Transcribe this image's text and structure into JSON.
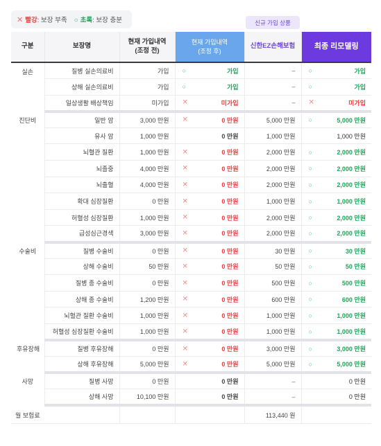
{
  "legend": {
    "red_label": "빨강",
    "red_text": ": 보장 부족",
    "green_label": "초록",
    "green_text": ": 보장 충분",
    "x_mark": "✕",
    "o_mark": "○"
  },
  "badge": "신규 가입 상품",
  "headers": {
    "category": "구분",
    "coverage": "보장명",
    "current_l1": "현재 가입내역",
    "current_l2": "(조정 전)",
    "adjusted_l1": "현재 가입내역",
    "adjusted_l2": "(조정 후)",
    "shinhan": "신한EZ손해보험",
    "remodel": "최종 리모델링"
  },
  "rows": [
    {
      "cat": "실손",
      "name": "질병 실손의료비",
      "cur": "가입",
      "mk": "o",
      "adj": "가입",
      "adj_c": "g",
      "sh": "–",
      "rmk": "o",
      "rem": "가입",
      "rem_c": "g"
    },
    {
      "cat": "",
      "name": "상해 실손의료비",
      "cur": "가입",
      "mk": "o",
      "adj": "가입",
      "adj_c": "g",
      "sh": "–",
      "rmk": "o",
      "rem": "가입",
      "rem_c": "g"
    },
    {
      "cat": "",
      "name": "일상생활 배상책임",
      "cur": "미가입",
      "mk": "x",
      "adj": "미가입",
      "adj_c": "r",
      "sh": "–",
      "rmk": "x",
      "rem": "미가입",
      "rem_c": "r",
      "end": true
    },
    {
      "cat": "진단비",
      "name": "일반 암",
      "cur": "3,000 만원",
      "mk": "x",
      "adj": "0 만원",
      "adj_c": "r",
      "sh": "5,000 만원",
      "rmk": "o",
      "rem": "5,000 만원",
      "rem_c": "g"
    },
    {
      "cat": "",
      "name": "유사 암",
      "cur": "1,000 만원",
      "mk": "",
      "adj": "0 만원",
      "adj_c": "",
      "sh": "1,000 만원",
      "rmk": "",
      "rem": "1,000 만원",
      "rem_c": ""
    },
    {
      "cat": "",
      "name": "뇌혈관 질환",
      "cur": "1,000 만원",
      "mk": "x",
      "adj": "0 만원",
      "adj_c": "r",
      "sh": "2,000 만원",
      "rmk": "o",
      "rem": "2,000 만원",
      "rem_c": "g"
    },
    {
      "cat": "",
      "name": "뇌졸중",
      "cur": "4,000 만원",
      "mk": "x",
      "adj": "0 만원",
      "adj_c": "r",
      "sh": "2,000 만원",
      "rmk": "o",
      "rem": "2,000 만원",
      "rem_c": "g"
    },
    {
      "cat": "",
      "name": "뇌출혈",
      "cur": "4,000 만원",
      "mk": "x",
      "adj": "0 만원",
      "adj_c": "r",
      "sh": "2,000 만원",
      "rmk": "o",
      "rem": "2,000 만원",
      "rem_c": "g"
    },
    {
      "cat": "",
      "name": "확대 심장질환",
      "cur": "0 만원",
      "mk": "x",
      "adj": "0 만원",
      "adj_c": "r",
      "sh": "1,000 만원",
      "rmk": "o",
      "rem": "1,000 만원",
      "rem_c": "g"
    },
    {
      "cat": "",
      "name": "허혈성 심장질환",
      "cur": "1,000 만원",
      "mk": "x",
      "adj": "0 만원",
      "adj_c": "r",
      "sh": "2,000 만원",
      "rmk": "o",
      "rem": "2,000 만원",
      "rem_c": "g"
    },
    {
      "cat": "",
      "name": "급성심근경색",
      "cur": "3,000 만원",
      "mk": "x",
      "adj": "0 만원",
      "adj_c": "r",
      "sh": "2,000 만원",
      "rmk": "o",
      "rem": "2,000 만원",
      "rem_c": "g",
      "end": true
    },
    {
      "cat": "수술비",
      "name": "질병 수술비",
      "cur": "0 만원",
      "mk": "x",
      "adj": "0 만원",
      "adj_c": "r",
      "sh": "30 만원",
      "rmk": "o",
      "rem": "30 만원",
      "rem_c": "g"
    },
    {
      "cat": "",
      "name": "상해 수술비",
      "cur": "50 만원",
      "mk": "x",
      "adj": "0 만원",
      "adj_c": "r",
      "sh": "50 만원",
      "rmk": "o",
      "rem": "50 만원",
      "rem_c": "g"
    },
    {
      "cat": "",
      "name": "질병 종 수술비",
      "cur": "0 만원",
      "mk": "x",
      "adj": "0 만원",
      "adj_c": "r",
      "sh": "500 만원",
      "rmk": "o",
      "rem": "500 만원",
      "rem_c": "g"
    },
    {
      "cat": "",
      "name": "상해 종 수술비",
      "cur": "1,200 만원",
      "mk": "x",
      "adj": "0 만원",
      "adj_c": "r",
      "sh": "600 만원",
      "rmk": "o",
      "rem": "600 만원",
      "rem_c": "g"
    },
    {
      "cat": "",
      "name": "뇌혈관 질환 수술비",
      "cur": "1,000 만원",
      "mk": "x",
      "adj": "0 만원",
      "adj_c": "r",
      "sh": "1,000 만원",
      "rmk": "o",
      "rem": "1,000 만원",
      "rem_c": "g"
    },
    {
      "cat": "",
      "name": "허혈성 심장질환 수술비",
      "cur": "1,000 만원",
      "mk": "x",
      "adj": "0 만원",
      "adj_c": "r",
      "sh": "1,000 만원",
      "rmk": "o",
      "rem": "1,000 만원",
      "rem_c": "g",
      "end": true
    },
    {
      "cat": "후유장해",
      "name": "질병 후유장해",
      "cur": "0 만원",
      "mk": "x",
      "adj": "0 만원",
      "adj_c": "r",
      "sh": "3,000 만원",
      "rmk": "o",
      "rem": "3,000 만원",
      "rem_c": "g"
    },
    {
      "cat": "",
      "name": "상해 후유장해",
      "cur": "5,000 만원",
      "mk": "x",
      "adj": "0 만원",
      "adj_c": "r",
      "sh": "5,000 만원",
      "rmk": "o",
      "rem": "5,000 만원",
      "rem_c": "g",
      "end": true
    },
    {
      "cat": "사망",
      "name": "질병 사망",
      "cur": "0 만원",
      "mk": "",
      "adj": "0 만원",
      "adj_c": "",
      "sh": "–",
      "rmk": "",
      "rem": "0 만원",
      "rem_c": ""
    },
    {
      "cat": "",
      "name": "상해 사망",
      "cur": "10,100 만원",
      "mk": "",
      "adj": "0 만원",
      "adj_c": "",
      "sh": "–",
      "rmk": "",
      "rem": "0 만원",
      "rem_c": "",
      "end": true
    }
  ],
  "total": {
    "label": "월 보험료",
    "shinhan": "113,440 원"
  }
}
